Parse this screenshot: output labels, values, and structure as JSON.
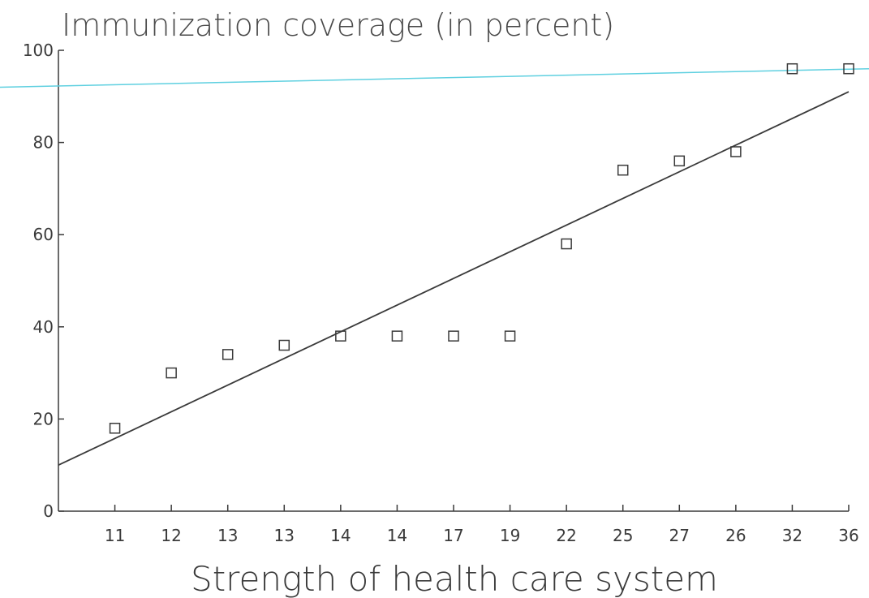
{
  "chart_data": {
    "type": "scatter",
    "title": "Immunization coverage (in percent)",
    "xlabel": "Strength of health care system",
    "ylabel": "",
    "ylim": [
      0,
      100
    ],
    "yticks": [
      0,
      20,
      40,
      60,
      80,
      100
    ],
    "categories": [
      "11",
      "12",
      "13",
      "13",
      "14",
      "14",
      "17",
      "19",
      "22",
      "25",
      "27",
      "26",
      "32",
      "36"
    ],
    "values": [
      18,
      30,
      34,
      36,
      38,
      38,
      38,
      38,
      58,
      74,
      76,
      78,
      96,
      96
    ],
    "trendline": {
      "start": 10,
      "end": 91
    },
    "reference_line": {
      "start": 92,
      "end": 96,
      "color": "#5fd0e0"
    },
    "marker": "hollow-square",
    "grid": false,
    "colors": {
      "axis": "#3a3a3a",
      "trend": "#3a3a3a",
      "marker": "#3a3a3a",
      "reference": "#5fd0e0"
    }
  }
}
